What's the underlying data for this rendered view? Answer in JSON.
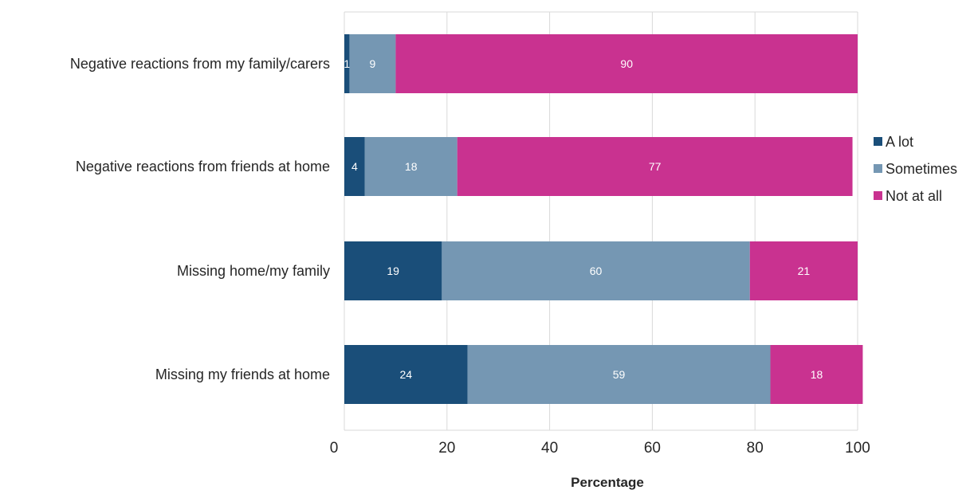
{
  "chart_data": {
    "type": "bar",
    "orientation": "horizontal",
    "stacked": true,
    "categories": [
      "Negative reactions from my family/carers",
      "Negative reactions from friends at home",
      "Missing home/my family",
      "Missing my friends at home"
    ],
    "series": [
      {
        "name": "A lot",
        "values": [
          1,
          4,
          19,
          24
        ],
        "color": "#1a4e79"
      },
      {
        "name": "Sometimes",
        "values": [
          9,
          18,
          60,
          59
        ],
        "color": "#7597b3"
      },
      {
        "name": "Not at all",
        "values": [
          90,
          77,
          21,
          18
        ],
        "color": "#c93290"
      }
    ],
    "xlabel": "Percentage",
    "ylabel": "",
    "xlim": [
      0,
      100
    ],
    "xticks": [
      "0",
      "20",
      "40",
      "60",
      "80",
      "100"
    ],
    "grid": true,
    "legend_position": "right"
  }
}
